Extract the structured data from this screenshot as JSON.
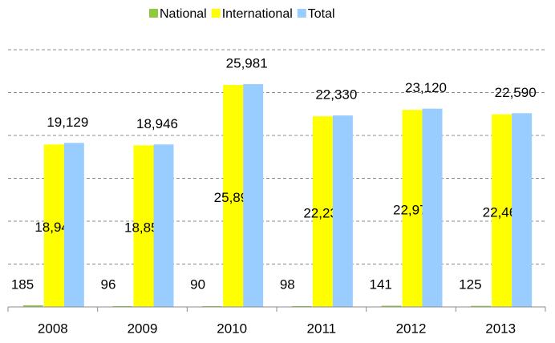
{
  "chart_data": {
    "type": "bar",
    "categories": [
      "2008",
      "2009",
      "2010",
      "2011",
      "2012",
      "2013"
    ],
    "series": [
      {
        "name": "National",
        "color": "#92c83e",
        "values": [
          185,
          96,
          90,
          98,
          141,
          125
        ]
      },
      {
        "name": "International",
        "color": "#ffff00",
        "values": [
          18944,
          18850,
          25891,
          22232,
          22979,
          22465
        ],
        "value_labels": [
          "18,944",
          "18,850",
          "25,891",
          "22,232",
          "22,979",
          "22,465"
        ]
      },
      {
        "name": "Total",
        "color": "#99ccff",
        "values": [
          19129,
          18946,
          25981,
          22330,
          23120,
          22590
        ],
        "value_labels": [
          "19,129",
          "18,946",
          "25,981",
          "22,330",
          "23,120",
          "22,590"
        ]
      }
    ],
    "ylim": [
      0,
      30000
    ],
    "yticks": [
      0,
      5000,
      10000,
      15000,
      20000,
      25000,
      30000
    ],
    "grid": true,
    "legend": "top"
  }
}
